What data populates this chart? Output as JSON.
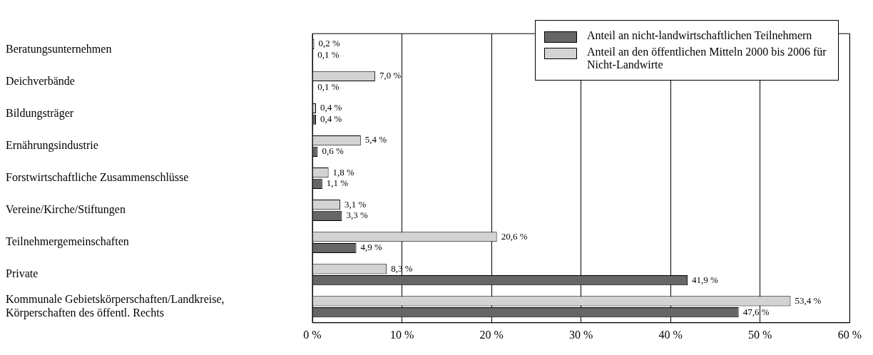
{
  "chart_data": {
    "type": "bar",
    "orientation": "horizontal",
    "categories": [
      "Beratungsunternehmen",
      "Deichverbände",
      "Bildungsträger",
      "Ernährungsindustrie",
      "Forstwirtschaftliche Zusammenschlüsse",
      "Vereine/Kirche/Stiftungen",
      "Teilnehmergemeinschaften",
      "Private",
      "Kommunale Gebietskörperschaften/Landkreise, Körperschaften des öffentl. Rechts"
    ],
    "series": [
      {
        "name": "Anteil an nicht-landwirtschaftlichen Teilnehmern",
        "color": "#666666",
        "values": [
          0.1,
          0.1,
          0.4,
          0.6,
          1.1,
          3.3,
          4.9,
          41.9,
          47.6
        ],
        "value_labels": [
          "0,1 %",
          "0,1 %",
          "0,4 %",
          "0,6 %",
          "1,1 %",
          "3,3 %",
          "4,9 %",
          "41,9 %",
          "47,6 %"
        ]
      },
      {
        "name": "Anteil an den öffentlichen Mitteln 2000 bis 2006 für Nicht-Landwirte",
        "color": "#d3d3d3",
        "values": [
          0.2,
          7.0,
          0.4,
          5.4,
          1.8,
          3.1,
          20.6,
          8.3,
          53.4
        ],
        "value_labels": [
          "0,2 %",
          "7,0 %",
          "0,4 %",
          "5,4 %",
          "1,8 %",
          "3,1 %",
          "20,6 %",
          "8,3 %",
          "53,4 %"
        ]
      }
    ],
    "xlim": [
      0,
      60
    ],
    "xticks": [
      {
        "value": 0,
        "label": "0 %"
      },
      {
        "value": 10,
        "label": "10 %"
      },
      {
        "value": 20,
        "label": "20 %"
      },
      {
        "value": 30,
        "label": "30 %"
      },
      {
        "value": 40,
        "label": "40 %"
      },
      {
        "value": 50,
        "label": "50 %"
      },
      {
        "value": 60,
        "label": "60 %"
      }
    ],
    "grid": "x",
    "legend": "top right"
  }
}
